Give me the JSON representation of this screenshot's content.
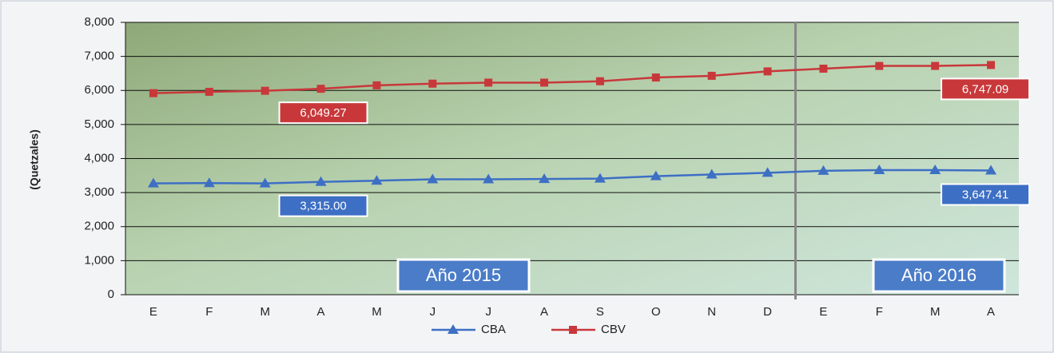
{
  "chart_data": {
    "type": "line",
    "y_label": "(Quetzales)",
    "categories": [
      "E",
      "F",
      "M",
      "A",
      "M",
      "J",
      "J",
      "A",
      "S",
      "O",
      "N",
      "D",
      "E",
      "F",
      "M",
      "A"
    ],
    "series": [
      {
        "name": "CBA",
        "color": "#3d6fc4",
        "marker": "triangle",
        "values": [
          3270,
          3280,
          3270,
          3315,
          3350,
          3390,
          3390,
          3400,
          3410,
          3480,
          3530,
          3580,
          3640,
          3660,
          3660,
          3647.41
        ],
        "value_labels": [
          null,
          null,
          null,
          "3,315.00",
          null,
          null,
          null,
          null,
          null,
          null,
          null,
          null,
          null,
          null,
          null,
          "3,647.41"
        ]
      },
      {
        "name": "CBV",
        "color": "#c8383a",
        "marker": "square",
        "values": [
          5920,
          5960,
          5990,
          6049.27,
          6150,
          6200,
          6230,
          6230,
          6270,
          6380,
          6430,
          6560,
          6640,
          6720,
          6720,
          6747.09
        ],
        "value_labels": [
          null,
          null,
          null,
          "6,049.27",
          null,
          null,
          null,
          null,
          null,
          null,
          null,
          null,
          null,
          null,
          null,
          "6,747.09"
        ]
      }
    ],
    "ylim": [
      0,
      8000
    ],
    "yticks": [
      0,
      {
        "value": 1000,
        "label": "1,000"
      },
      {
        "value": 2000,
        "label": "2,000"
      },
      {
        "value": 3000,
        "label": "3,000"
      },
      {
        "value": 4000,
        "label": "4,000"
      },
      {
        "value": 5000,
        "label": "5,000"
      },
      {
        "value": 6000,
        "label": "6,000"
      },
      {
        "value": 7000,
        "label": "7,000"
      },
      {
        "value": 8000,
        "label": "8,000"
      }
    ],
    "grid": true,
    "annotations": [
      "Año 2015",
      "Año 2016"
    ]
  }
}
